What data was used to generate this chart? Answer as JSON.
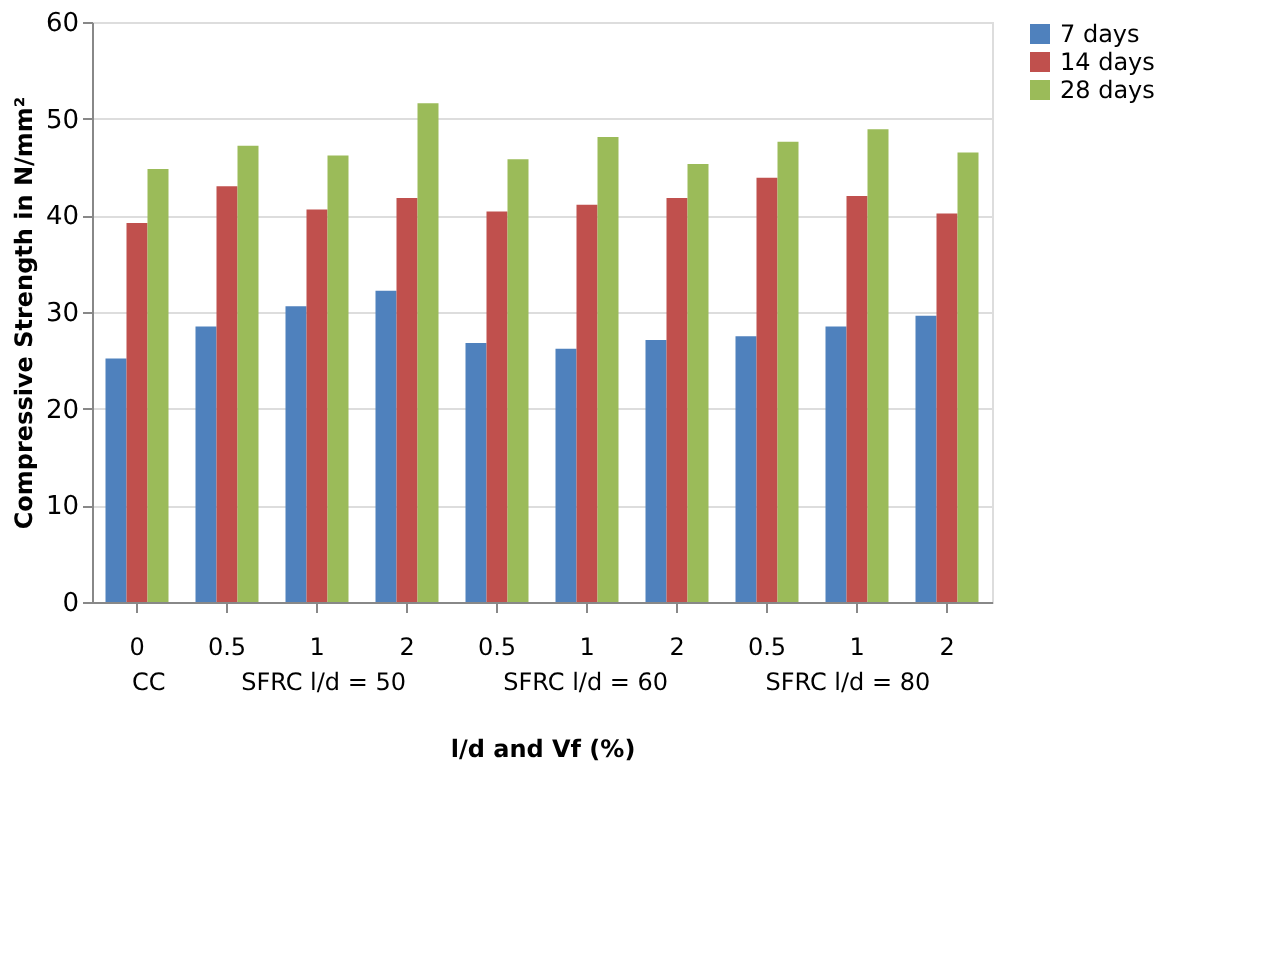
{
  "chart_data": {
    "type": "bar",
    "xlabel": "l/d and Vf (%)",
    "ylabel": "Compressive Strength in N/mm²",
    "categories": [
      "0",
      "0.5",
      "1",
      "2",
      "0.5",
      "1",
      "2",
      "0.5",
      "1",
      "2"
    ],
    "series": [
      {
        "name": "7 days",
        "color": "#4f81bd",
        "values": [
          25.2,
          28.5,
          30.6,
          32.2,
          26.8,
          26.2,
          27.1,
          27.5,
          28.5,
          29.6
        ]
      },
      {
        "name": "14 days",
        "color": "#c0504d",
        "values": [
          39.2,
          43.0,
          40.6,
          41.8,
          40.4,
          41.1,
          41.8,
          43.9,
          42.0,
          40.2
        ]
      },
      {
        "name": "28 days",
        "color": "#9bbb59",
        "values": [
          44.8,
          47.2,
          46.2,
          51.6,
          45.8,
          48.1,
          45.3,
          47.6,
          48.9,
          46.5
        ]
      }
    ],
    "annotations": [
      "CC",
      "SFRC l/d = 50",
      "SFRC l/d = 60",
      "SFRC l/d = 80"
    ],
    "ylim": [
      0,
      60
    ],
    "yticks": [
      0,
      10,
      20,
      30,
      40,
      50,
      60
    ],
    "grid": "y",
    "legend": "right"
  }
}
